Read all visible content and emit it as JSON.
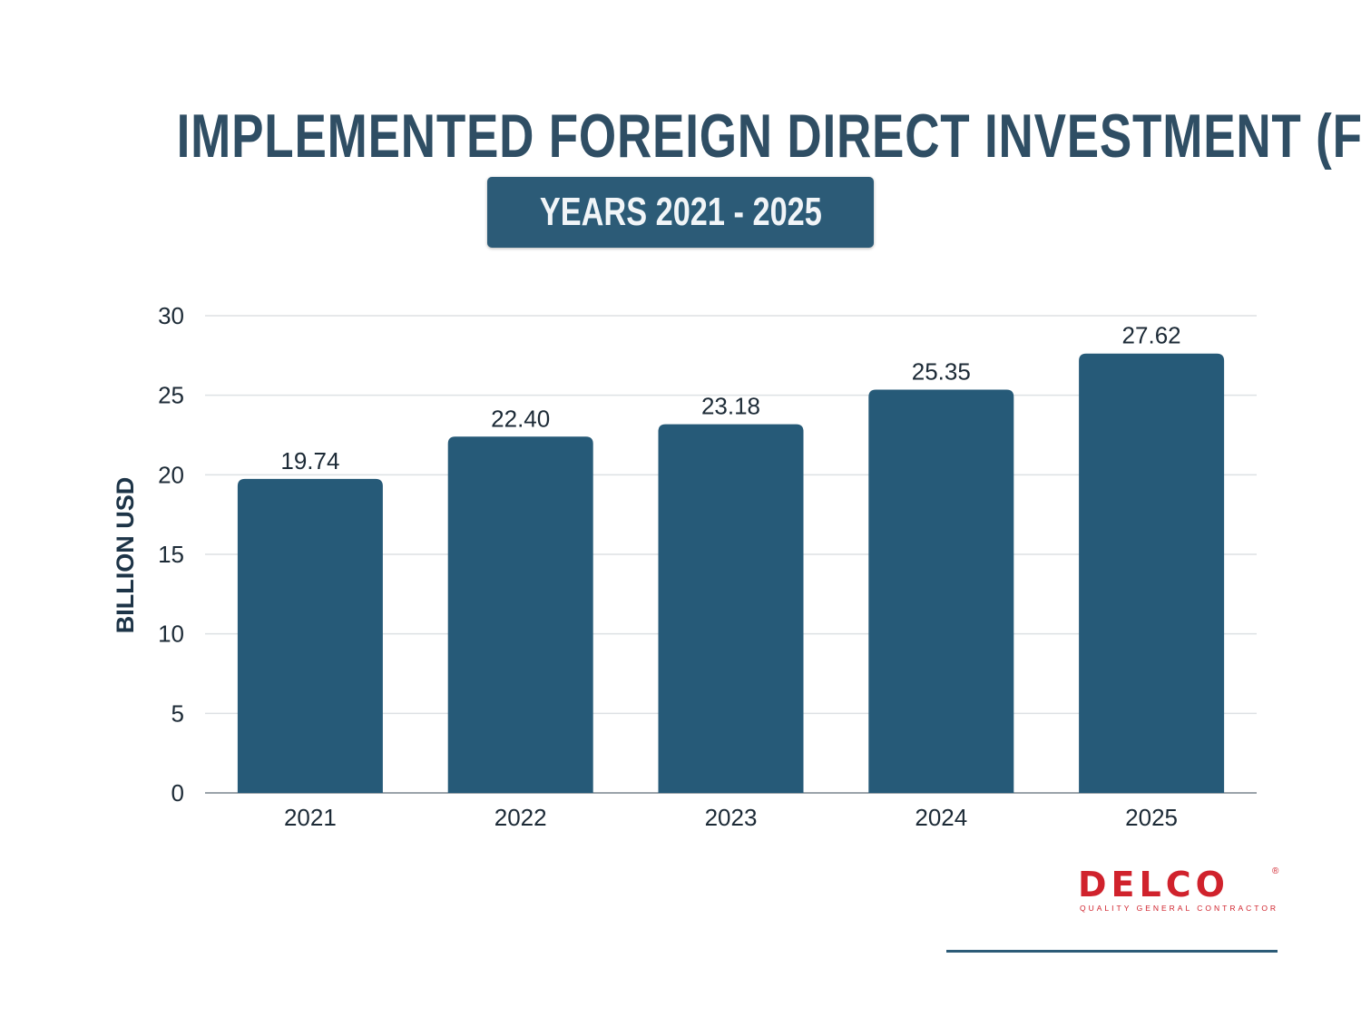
{
  "header": {
    "title": "IMPLEMENTED FOREIGN DIRECT INVESTMENT (FDI)",
    "subtitle": "YEARS 2021 - 2025"
  },
  "chart_data": {
    "type": "bar",
    "title": "IMPLEMENTED FOREIGN DIRECT INVESTMENT (FDI)",
    "subtitle": "YEARS 2021 - 2025",
    "categories": [
      "2021",
      "2022",
      "2023",
      "2024",
      "2025"
    ],
    "values": [
      19.74,
      22.4,
      23.18,
      25.35,
      27.62
    ],
    "data_labels": [
      "19.74",
      "22.40",
      "23.18",
      "25.35",
      "27.62"
    ],
    "xlabel": "",
    "ylabel": "BILLION USD",
    "ylim": [
      0,
      30
    ],
    "yticks": [
      "0",
      "5",
      "10",
      "15",
      "20",
      "25",
      "30"
    ],
    "grid": true,
    "bar_color": "#265a78"
  },
  "logo": {
    "word": "DELCO",
    "tagline": "QUALITY GENERAL CONTRACTOR",
    "reg": "®",
    "color": "#d0222c"
  }
}
